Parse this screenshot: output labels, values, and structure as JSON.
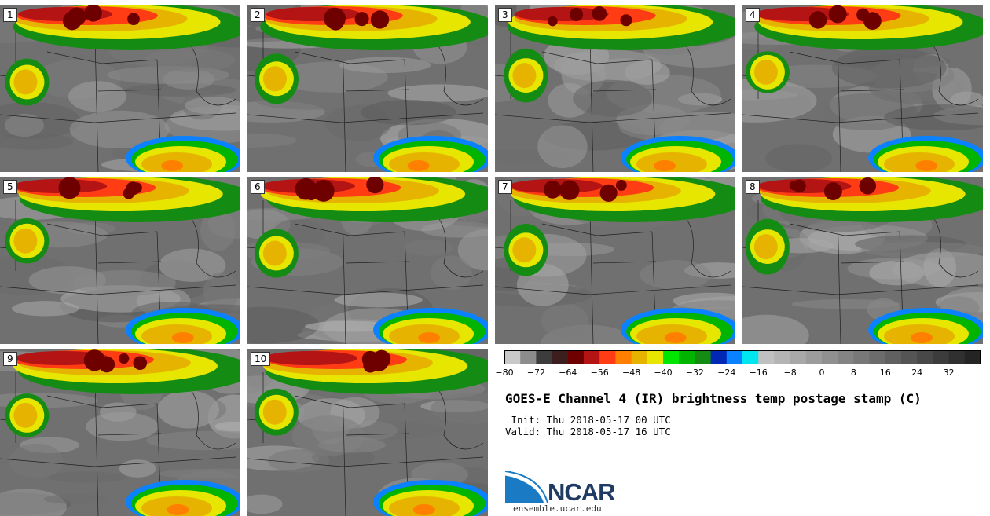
{
  "panels": [
    {
      "label": "1"
    },
    {
      "label": "2"
    },
    {
      "label": "3"
    },
    {
      "label": "4"
    },
    {
      "label": "5"
    },
    {
      "label": "6"
    },
    {
      "label": "7"
    },
    {
      "label": "8"
    },
    {
      "label": "9"
    },
    {
      "label": "10"
    }
  ],
  "colorbar": {
    "ticks": [
      "−80",
      "−72",
      "−64",
      "−56",
      "−48",
      "−40",
      "−32",
      "−24",
      "−16",
      "−8",
      "0",
      "8",
      "16",
      "24",
      "32"
    ],
    "colors": [
      "#c8c8c8",
      "#8c8c8c",
      "#3c3c3c",
      "#3c1e1e",
      "#6e0000",
      "#b41414",
      "#ff3c14",
      "#ff8000",
      "#e6b400",
      "#e6e600",
      "#00e600",
      "#00b400",
      "#148c14",
      "#0028b4",
      "#0a82ff",
      "#00e6f0",
      "#c0c0c0",
      "#b4b4b4",
      "#a8a8a8",
      "#9c9c9c",
      "#909090",
      "#848484",
      "#787878",
      "#6c6c6c",
      "#606060",
      "#545454",
      "#484848",
      "#3c3c3c",
      "#303030",
      "#242424"
    ]
  },
  "title": "GOES-E Channel 4 (IR) brightness temp postage stamp (C)",
  "init_line": " Init: Thu 2018-05-17 00 UTC",
  "valid_line": "Valid: Thu 2018-05-17 16 UTC",
  "logo_text": "NCAR",
  "url": "ensemble.ucar.edu"
}
